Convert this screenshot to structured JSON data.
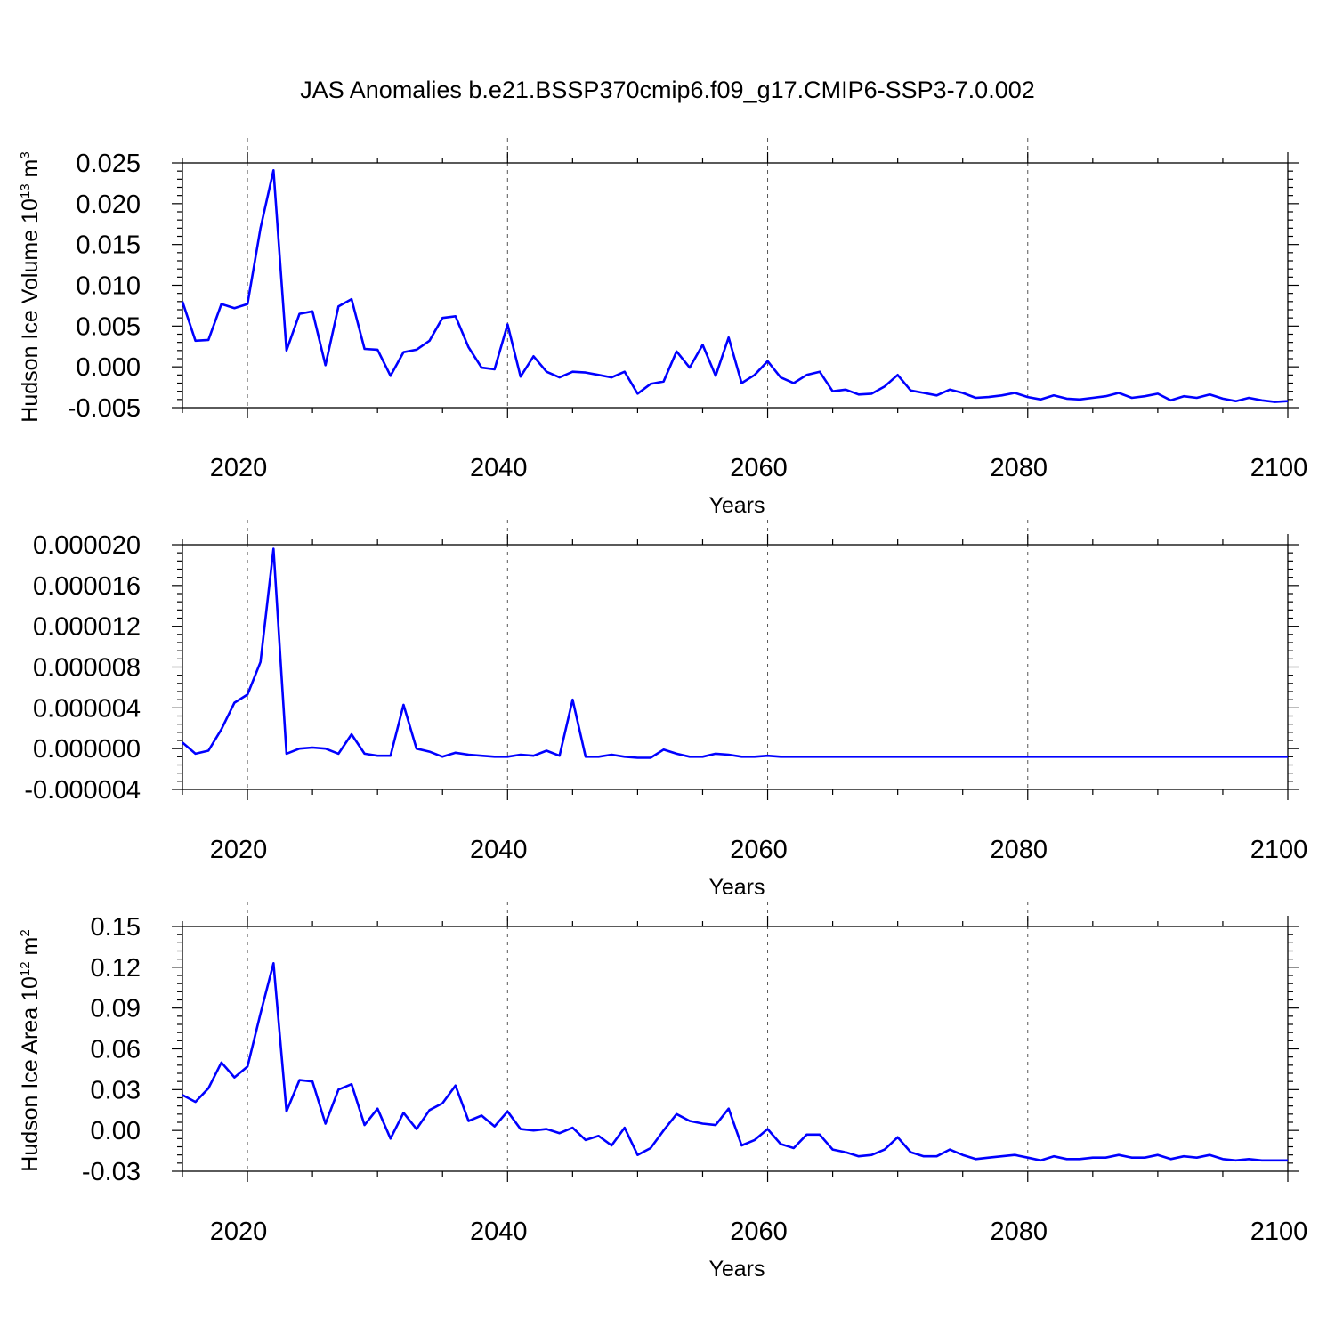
{
  "figure": {
    "title": "JAS Anomalies b.e21.BSSP370cmip6.f09_g17.CMIP6-SSP3-7.0.002"
  },
  "colors": {
    "series": "#0000ff",
    "frame": "#000000",
    "grid": "#555555"
  },
  "chart_data": [
    {
      "type": "line",
      "id": "volume",
      "title": "",
      "xlabel": "Years",
      "ylabel": "Hudson Ice Volume 10",
      "ylabel_sup": "13",
      "ylabel_unit": " m",
      "ylabel_unit_sup": "3",
      "xlim": [
        2015,
        2100
      ],
      "ylim": [
        -0.005,
        0.025
      ],
      "xticks": [
        2020,
        2040,
        2060,
        2080,
        2100
      ],
      "xtick_labels": [
        "2020",
        "2040",
        "2060",
        "2080",
        "2100"
      ],
      "yticks": [
        -0.005,
        0.0,
        0.005,
        0.01,
        0.015,
        0.02,
        0.025
      ],
      "ytick_labels": [
        "-0.005",
        "0.000",
        "0.005",
        "0.010",
        "0.015",
        "0.020",
        "0.025"
      ],
      "grid": "vertical dashed at major x ticks",
      "x_start": 2015,
      "series": [
        {
          "values": [
            0.008,
            0.0032,
            0.0033,
            0.0077,
            0.0072,
            0.0077,
            0.017,
            0.0241,
            0.002,
            0.0065,
            0.0068,
            0.0002,
            0.0074,
            0.0083,
            0.0022,
            0.0021,
            -0.0011,
            0.0018,
            0.0021,
            0.0032,
            0.006,
            0.0062,
            0.0024,
            -0.0001,
            -0.0003,
            0.0052,
            -0.0012,
            0.0013,
            -0.0006,
            -0.0013,
            -0.0006,
            -0.0007,
            -0.001,
            -0.0013,
            -0.0006,
            -0.0033,
            -0.0021,
            -0.0018,
            0.0019,
            -0.0001,
            0.0027,
            -0.0011,
            0.0036,
            -0.002,
            -0.001,
            0.0007,
            -0.0013,
            -0.002,
            -0.001,
            -0.0006,
            -0.003,
            -0.0028,
            -0.0034,
            -0.0033,
            -0.0024,
            -0.001,
            -0.0029,
            -0.0032,
            -0.0035,
            -0.0028,
            -0.0032,
            -0.0038,
            -0.0037,
            -0.0035,
            -0.0032,
            -0.0037,
            -0.004,
            -0.0035,
            -0.0039,
            -0.004,
            -0.0038,
            -0.0036,
            -0.0032,
            -0.0038,
            -0.0036,
            -0.0033,
            -0.0041,
            -0.0036,
            -0.0038,
            -0.0034,
            -0.0039,
            -0.0042,
            -0.0038,
            -0.0041,
            -0.0043,
            -0.0042
          ]
        }
      ]
    },
    {
      "type": "line",
      "id": "thickness",
      "title": "",
      "xlabel": "Years",
      "ylabel": "",
      "xlim": [
        2015,
        2100
      ],
      "ylim": [
        -4e-06,
        2e-05
      ],
      "xticks": [
        2020,
        2040,
        2060,
        2080,
        2100
      ],
      "xtick_labels": [
        "2020",
        "2040",
        "2060",
        "2080",
        "2100"
      ],
      "yticks": [
        -4e-06,
        0.0,
        4e-06,
        8e-06,
        1.2e-05,
        1.6e-05,
        2e-05
      ],
      "ytick_labels": [
        "-0.000004",
        "0.000000",
        "0.000004",
        "0.000008",
        "0.000012",
        "0.000016",
        "0.000020"
      ],
      "grid": "vertical dashed at major x ticks",
      "x_start": 2015,
      "series": [
        {
          "values": [
            6e-07,
            -5e-07,
            -2e-07,
            1.9e-06,
            4.5e-06,
            5.3e-06,
            8.5e-06,
            1.96e-05,
            -5e-07,
            0.0,
            1e-07,
            0.0,
            -5e-07,
            1.4e-06,
            -5e-07,
            -7e-07,
            -7e-07,
            4.3e-06,
            0.0,
            -3e-07,
            -8e-07,
            -4e-07,
            -6e-07,
            -7e-07,
            -8e-07,
            -8e-07,
            -6e-07,
            -7e-07,
            -2e-07,
            -7e-07,
            4.8e-06,
            -8e-07,
            -8e-07,
            -6e-07,
            -8e-07,
            -9e-07,
            -9e-07,
            -1e-07,
            -5e-07,
            -8e-07,
            -8e-07,
            -5e-07,
            -6e-07,
            -8e-07,
            -8e-07,
            -7e-07,
            -8e-07,
            -8e-07,
            -8e-07,
            -8e-07,
            -8e-07,
            -8e-07,
            -8e-07,
            -8e-07,
            -8e-07,
            -8e-07,
            -8e-07,
            -8e-07,
            -8e-07,
            -8e-07,
            -8e-07,
            -8e-07,
            -8e-07,
            -8e-07,
            -8e-07,
            -8e-07,
            -8e-07,
            -8e-07,
            -8e-07,
            -8e-07,
            -8e-07,
            -8e-07,
            -8e-07,
            -8e-07,
            -8e-07,
            -8e-07,
            -8e-07,
            -8e-07,
            -8e-07,
            -8e-07,
            -8e-07,
            -8e-07,
            -8e-07,
            -8e-07,
            -8e-07,
            -8e-07
          ]
        }
      ]
    },
    {
      "type": "line",
      "id": "area",
      "title": "",
      "xlabel": "Years",
      "ylabel": "Hudson Ice Area 10",
      "ylabel_sup": "12",
      "ylabel_unit": " m",
      "ylabel_unit_sup": "2",
      "xlim": [
        2015,
        2100
      ],
      "ylim": [
        -0.03,
        0.15
      ],
      "xticks": [
        2020,
        2040,
        2060,
        2080,
        2100
      ],
      "xtick_labels": [
        "2020",
        "2040",
        "2060",
        "2080",
        "2100"
      ],
      "yticks": [
        -0.03,
        0.0,
        0.03,
        0.06,
        0.09,
        0.12,
        0.15
      ],
      "ytick_labels": [
        "-0.03",
        "0.00",
        "0.03",
        "0.06",
        "0.09",
        "0.12",
        "0.15"
      ],
      "grid": "vertical dashed at major x ticks",
      "x_start": 2015,
      "series": [
        {
          "values": [
            0.026,
            0.021,
            0.031,
            0.05,
            0.039,
            0.047,
            0.086,
            0.123,
            0.014,
            0.037,
            0.036,
            0.005,
            0.03,
            0.034,
            0.004,
            0.016,
            -0.006,
            0.013,
            0.001,
            0.015,
            0.02,
            0.033,
            0.007,
            0.011,
            0.003,
            0.014,
            0.001,
            0.0,
            0.001,
            -0.002,
            0.002,
            -0.007,
            -0.004,
            -0.011,
            0.002,
            -0.018,
            -0.013,
            0.0,
            0.012,
            0.007,
            0.005,
            0.004,
            0.016,
            -0.011,
            -0.007,
            0.001,
            -0.01,
            -0.013,
            -0.003,
            -0.003,
            -0.014,
            -0.016,
            -0.019,
            -0.018,
            -0.014,
            -0.005,
            -0.016,
            -0.019,
            -0.019,
            -0.014,
            -0.018,
            -0.021,
            -0.02,
            -0.019,
            -0.018,
            -0.02,
            -0.022,
            -0.019,
            -0.021,
            -0.021,
            -0.02,
            -0.02,
            -0.018,
            -0.02,
            -0.02,
            -0.018,
            -0.021,
            -0.019,
            -0.02,
            -0.018,
            -0.021,
            -0.022,
            -0.021,
            -0.022,
            -0.022,
            -0.022
          ]
        }
      ]
    }
  ]
}
